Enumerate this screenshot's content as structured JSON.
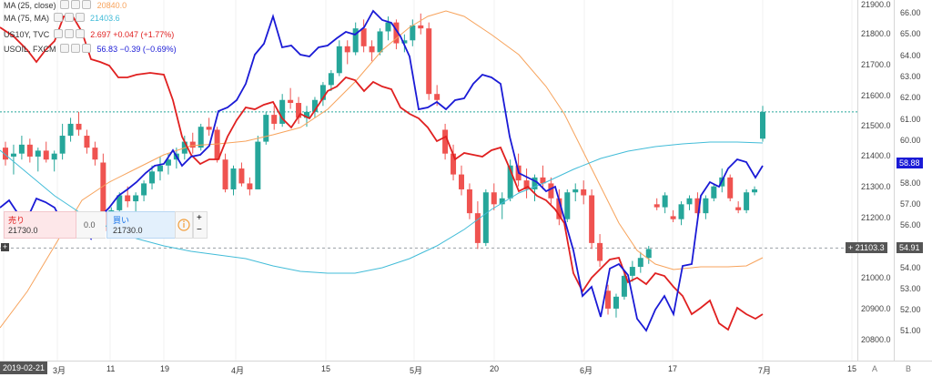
{
  "legend": [
    {
      "label": "MA (25, close)",
      "value": "20840.0",
      "color": "#f7a35c"
    },
    {
      "label": "MA (75, MA)",
      "value": "21403.6",
      "color": "#42bcd8"
    },
    {
      "label": "US10Y, TVC",
      "value": "2.697  +0.047 (+1.77%)",
      "color": "#e02020"
    },
    {
      "label": "USOIL, FXCM",
      "value": "56.83  −0.39 (−0.69%)",
      "color": "#1a1ad6"
    }
  ],
  "axis_right_primary": {
    "ticks": [
      "21900.0",
      "21800.0",
      "21700.0",
      "21600.0",
      "21500.0",
      "21400.0",
      "21300.0",
      "21200.0",
      "21100.0",
      "21000.0",
      "20900.0",
      "20800.0"
    ],
    "last_price": "21103.3"
  },
  "axis_right_secondary": {
    "ticks": [
      "66.00",
      "65.00",
      "64.00",
      "63.00",
      "62.00",
      "61.00",
      "60.00",
      "59.00",
      "58.00",
      "57.00",
      "56.00",
      "55.00",
      "54.00",
      "53.00",
      "52.00",
      "51.00"
    ],
    "current_tag": "58.88",
    "cross_tag": "54.91"
  },
  "axis_bottom": {
    "start_date": "2019-02-21",
    "ticks": [
      "3月",
      "11",
      "19",
      "4月",
      "15",
      "5月",
      "20",
      "6月",
      "17",
      "7月",
      "15"
    ],
    "corner_labels": [
      "A",
      "B"
    ]
  },
  "trade_panel": {
    "sell_label": "売り",
    "sell_price": "21730.0",
    "quantity": "0.0",
    "buy_label": "買い",
    "buy_price": "21730.0",
    "plus": "+",
    "minus": "−"
  },
  "chart_data": {
    "type": "candlestick",
    "ylim": [
      20750,
      21920
    ],
    "x_dates": [
      "2019-02-21",
      "2019-07-03"
    ],
    "candles": [
      [
        21440,
        21460,
        21380,
        21400
      ],
      [
        21410,
        21450,
        21350,
        21420
      ],
      [
        21420,
        21480,
        21400,
        21450
      ],
      [
        21450,
        21470,
        21390,
        21410
      ],
      [
        21410,
        21440,
        21360,
        21430
      ],
      [
        21430,
        21460,
        21390,
        21400
      ],
      [
        21400,
        21430,
        21360,
        21420
      ],
      [
        21420,
        21520,
        21400,
        21480
      ],
      [
        21480,
        21540,
        21460,
        21520
      ],
      [
        21520,
        21560,
        21480,
        21500
      ],
      [
        21480,
        21500,
        21420,
        21440
      ],
      [
        21440,
        21460,
        21380,
        21400
      ],
      [
        21390,
        21420,
        21150,
        21160
      ],
      [
        21160,
        21240,
        21150,
        21230
      ],
      [
        21230,
        21290,
        21220,
        21280
      ],
      [
        21280,
        21310,
        21240,
        21260
      ],
      [
        21260,
        21290,
        21220,
        21280
      ],
      [
        21280,
        21330,
        21260,
        21320
      ],
      [
        21320,
        21380,
        21300,
        21360
      ],
      [
        21360,
        21410,
        21330,
        21380
      ],
      [
        21380,
        21420,
        21350,
        21400
      ],
      [
        21400,
        21440,
        21370,
        21420
      ],
      [
        21420,
        21480,
        21400,
        21460
      ],
      [
        21460,
        21490,
        21420,
        21440
      ],
      [
        21440,
        21520,
        21430,
        21510
      ],
      [
        21510,
        21540,
        21480,
        21500
      ],
      [
        21500,
        21510,
        21390,
        21400
      ],
      [
        21400,
        21420,
        21290,
        21300
      ],
      [
        21300,
        21380,
        21280,
        21370
      ],
      [
        21370,
        21390,
        21310,
        21320
      ],
      [
        21320,
        21340,
        21280,
        21300
      ],
      [
        21300,
        21480,
        21300,
        21460
      ],
      [
        21460,
        21560,
        21450,
        21550
      ],
      [
        21550,
        21580,
        21500,
        21520
      ],
      [
        21520,
        21620,
        21510,
        21600
      ],
      [
        21600,
        21640,
        21570,
        21590
      ],
      [
        21590,
        21610,
        21520,
        21540
      ],
      [
        21540,
        21580,
        21510,
        21560
      ],
      [
        21560,
        21610,
        21540,
        21600
      ],
      [
        21600,
        21660,
        21580,
        21650
      ],
      [
        21650,
        21700,
        21630,
        21690
      ],
      [
        21690,
        21800,
        21680,
        21780
      ],
      [
        21780,
        21800,
        21720,
        21760
      ],
      [
        21760,
        21860,
        21750,
        21840
      ],
      [
        21840,
        21870,
        21760,
        21780
      ],
      [
        21780,
        21800,
        21730,
        21760
      ],
      [
        21760,
        21840,
        21750,
        21830
      ],
      [
        21830,
        21880,
        21800,
        21860
      ],
      [
        21860,
        21870,
        21770,
        21790
      ],
      [
        21790,
        21820,
        21760,
        21800
      ],
      [
        21800,
        21870,
        21780,
        21850
      ],
      [
        21850,
        21890,
        21820,
        21840
      ],
      [
        21840,
        21860,
        21600,
        21620
      ],
      [
        21620,
        21650,
        21580,
        21600
      ],
      [
        21500,
        21520,
        21400,
        21420
      ],
      [
        21420,
        21450,
        21330,
        21350
      ],
      [
        21350,
        21380,
        21280,
        21300
      ],
      [
        21300,
        21320,
        21200,
        21220
      ],
      [
        21220,
        21260,
        21100,
        21120
      ],
      [
        21120,
        21300,
        21110,
        21290
      ],
      [
        21290,
        21320,
        21230,
        21250
      ],
      [
        21250,
        21290,
        21200,
        21270
      ],
      [
        21270,
        21400,
        21260,
        21380
      ],
      [
        21380,
        21420,
        21310,
        21330
      ],
      [
        21330,
        21370,
        21270,
        21300
      ],
      [
        21300,
        21350,
        21260,
        21340
      ],
      [
        21340,
        21380,
        21300,
        21320
      ],
      [
        21320,
        21340,
        21250,
        21270
      ],
      [
        21270,
        21300,
        21180,
        21200
      ],
      [
        21200,
        21300,
        21190,
        21290
      ],
      [
        21290,
        21320,
        21260,
        21300
      ],
      [
        21300,
        21330,
        21250,
        21280
      ],
      [
        21280,
        21300,
        21100,
        21120
      ],
      [
        21120,
        21150,
        21040,
        21060
      ],
      [
        20960,
        20980,
        20880,
        20900
      ],
      [
        20900,
        20950,
        20870,
        20940
      ],
      [
        20940,
        21020,
        20930,
        21010
      ],
      [
        21010,
        21060,
        20990,
        21040
      ],
      [
        21040,
        21090,
        21020,
        21070
      ],
      [
        21070,
        21110,
        21050,
        21100
      ],
      [
        21250,
        21270,
        21230,
        21240
      ],
      [
        21240,
        21290,
        21220,
        21280
      ],
      [
        21210,
        21230,
        21190,
        21200
      ],
      [
        21200,
        21260,
        21180,
        21250
      ],
      [
        21250,
        21280,
        21230,
        21270
      ],
      [
        21270,
        21290,
        21210,
        21220
      ],
      [
        21220,
        21280,
        21200,
        21270
      ],
      [
        21270,
        21320,
        21260,
        21310
      ],
      [
        21310,
        21370,
        21290,
        21340
      ],
      [
        21340,
        21350,
        21260,
        21270
      ],
      [
        21240,
        21260,
        21220,
        21230
      ],
      [
        21230,
        21300,
        21220,
        21290
      ],
      [
        21290,
        21310,
        21280,
        21300
      ],
      [
        21470,
        21580,
        21460,
        21560
      ]
    ],
    "series": [
      {
        "name": "MA (25, close)",
        "color": "#f7a35c"
      },
      {
        "name": "MA (75, MA)",
        "color": "#42bcd8"
      },
      {
        "name": "US10Y, TVC",
        "color": "#e02020"
      },
      {
        "name": "USOIL, FXCM",
        "color": "#1a1ad6"
      }
    ],
    "hlines": [
      {
        "value": 21560,
        "color": "#26a69a",
        "dash": "2,2"
      },
      {
        "value": 21103.3,
        "color": "#9aa0a6",
        "dash": "3,3"
      }
    ]
  }
}
